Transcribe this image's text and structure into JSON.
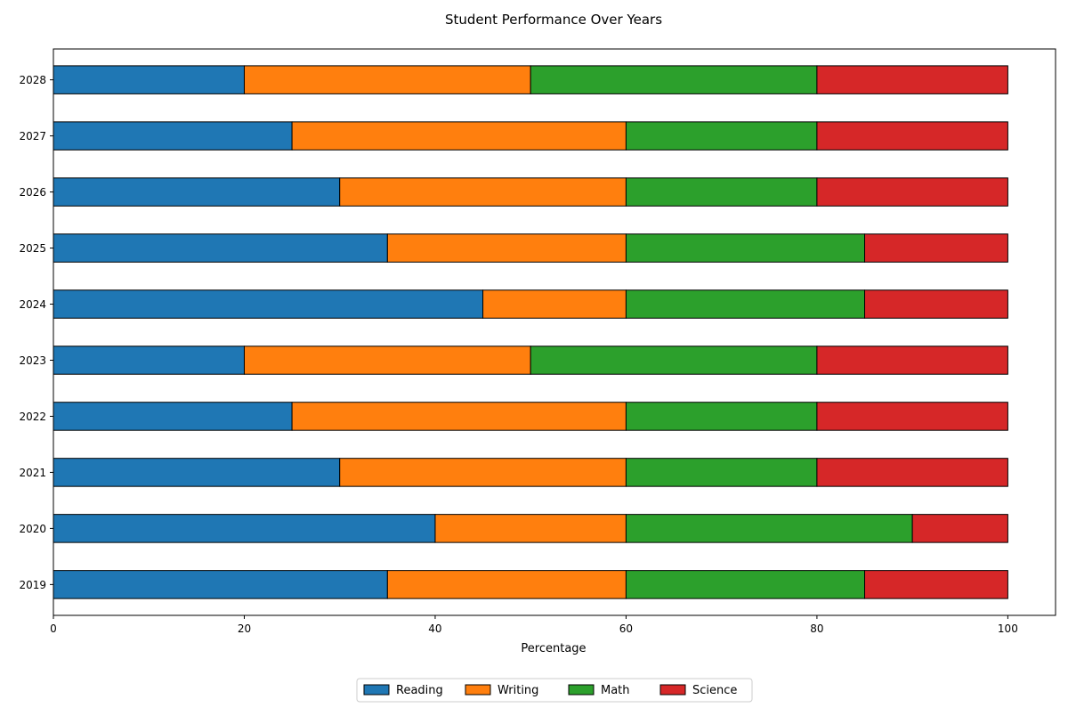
{
  "chart_data": {
    "type": "bar",
    "orientation": "horizontal",
    "stacked": true,
    "title": "Student Performance Over Years",
    "xlabel": "Percentage",
    "ylabel": "",
    "xlim": [
      0,
      105
    ],
    "xticks": [
      0,
      20,
      40,
      60,
      80,
      100
    ],
    "categories": [
      "2019",
      "2020",
      "2021",
      "2022",
      "2023",
      "2024",
      "2025",
      "2026",
      "2027",
      "2028"
    ],
    "series": [
      {
        "name": "Reading",
        "color": "#1f77b4",
        "values": [
          35,
          40,
          30,
          25,
          20,
          45,
          35,
          30,
          25,
          20
        ]
      },
      {
        "name": "Writing",
        "color": "#ff7f0e",
        "values": [
          25,
          20,
          30,
          35,
          30,
          15,
          25,
          30,
          35,
          30
        ]
      },
      {
        "name": "Math",
        "color": "#2ca02c",
        "values": [
          25,
          30,
          20,
          20,
          30,
          25,
          25,
          20,
          20,
          30
        ]
      },
      {
        "name": "Science",
        "color": "#d62728",
        "values": [
          15,
          10,
          20,
          20,
          20,
          15,
          15,
          20,
          20,
          20
        ]
      }
    ],
    "grid": false,
    "legend_position": "bottom-center"
  }
}
